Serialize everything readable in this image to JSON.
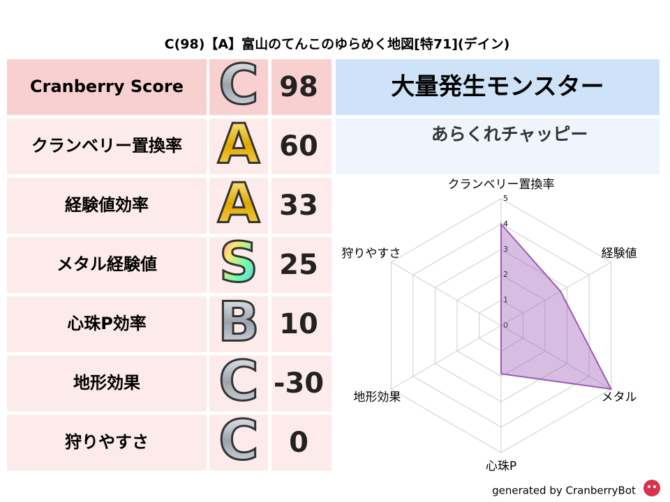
{
  "title": "C(98)【A】富山のてんこのゆらめく地図[特71](デイン)",
  "table": {
    "rows": [
      {
        "label": "Cranberry Score",
        "grade": "C",
        "grade_color": "silver",
        "score": 98
      },
      {
        "label": "クランベリー置換率",
        "grade": "A",
        "grade_color": "gold",
        "score": 60
      },
      {
        "label": "経験値効率",
        "grade": "A",
        "grade_color": "gold",
        "score": 33
      },
      {
        "label": "メタル経験値",
        "grade": "S",
        "grade_color": "rainbow",
        "score": 25
      },
      {
        "label": "心珠P効率",
        "grade": "B",
        "grade_color": "silver",
        "score": 10
      },
      {
        "label": "地形効果",
        "grade": "C",
        "grade_color": "silver",
        "score": -30
      },
      {
        "label": "狩りやすさ",
        "grade": "C",
        "grade_color": "silver",
        "score": 0
      }
    ]
  },
  "monster": {
    "header": "大量発生モンスター",
    "name": "あらくれチャッピー"
  },
  "chart_data": {
    "type": "radar",
    "categories": [
      "クランベリー置換率",
      "経験値",
      "メタル",
      "心珠P",
      "地形効果",
      "狩りやすさ"
    ],
    "series": [
      {
        "values": [
          4,
          2.7,
          5,
          1.9,
          0,
          0
        ],
        "color": "#9b59b6"
      }
    ],
    "rlim": [
      0,
      5
    ],
    "rticks": [
      0,
      1,
      2,
      3,
      4,
      5
    ]
  },
  "footer": "generated by CranberryBot"
}
